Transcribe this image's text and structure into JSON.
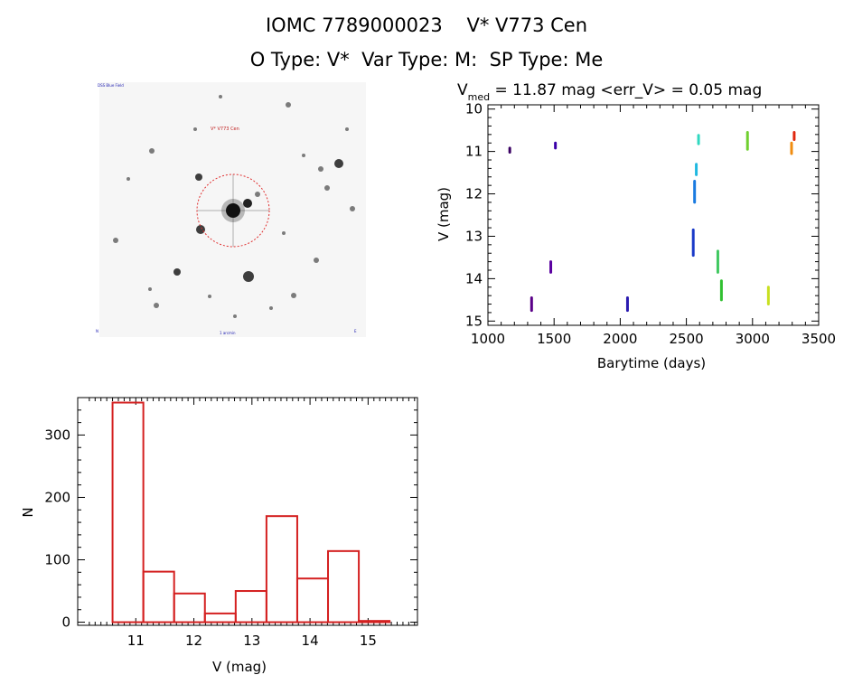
{
  "header": {
    "line1": "IOMC 7789000023    V* V773 Cen",
    "line2": "O Type: V*  Var Type: M:  SP Type: Me"
  },
  "image_labels": {
    "top_left": "DSS Blue Field",
    "target": "V* V773 Cen",
    "bottom": "1 arcmin",
    "corner_left": "N",
    "corner_right": "E"
  },
  "chart_data": [
    {
      "type": "scatter",
      "title_parts": {
        "v": "V",
        "sub": "med",
        "rest": " = 11.87 mag <err_V> = 0.05 mag"
      },
      "xlabel": "Barytime (days)",
      "ylabel": "V (mag)",
      "xlim": [
        1000,
        3500
      ],
      "ylim": [
        15.1,
        9.9
      ],
      "y_inverted": true,
      "xticks": [
        1000,
        1500,
        2000,
        2500,
        3000,
        3500
      ],
      "yticks": [
        10,
        11,
        12,
        13,
        14,
        15
      ],
      "color_by_time": true,
      "segments": [
        {
          "x": 1165,
          "y0": 10.92,
          "y1": 11.02,
          "color": "#3a0063"
        },
        {
          "x": 1330,
          "y0": 14.45,
          "y1": 14.75,
          "color": "#5a0088"
        },
        {
          "x": 1475,
          "y0": 13.6,
          "y1": 13.85,
          "color": "#5a00a0"
        },
        {
          "x": 1510,
          "y0": 10.8,
          "y1": 10.92,
          "color": "#3a00a8"
        },
        {
          "x": 2055,
          "y0": 14.45,
          "y1": 14.75,
          "color": "#2a1ab0"
        },
        {
          "x": 2552,
          "y0": 12.85,
          "y1": 13.45,
          "color": "#1a3ac8"
        },
        {
          "x": 2562,
          "y0": 11.7,
          "y1": 12.2,
          "color": "#1a7ae0"
        },
        {
          "x": 2575,
          "y0": 11.3,
          "y1": 11.55,
          "color": "#20b8e0"
        },
        {
          "x": 2592,
          "y0": 10.62,
          "y1": 10.82,
          "color": "#30d8c0"
        },
        {
          "x": 2738,
          "y0": 13.35,
          "y1": 13.85,
          "color": "#40c860"
        },
        {
          "x": 2765,
          "y0": 14.05,
          "y1": 14.5,
          "color": "#30c030"
        },
        {
          "x": 2962,
          "y0": 10.55,
          "y1": 10.95,
          "color": "#70d030"
        },
        {
          "x": 3120,
          "y0": 14.2,
          "y1": 14.6,
          "color": "#c8e020"
        },
        {
          "x": 3295,
          "y0": 10.8,
          "y1": 11.05,
          "color": "#f08c10"
        },
        {
          "x": 3315,
          "y0": 10.55,
          "y1": 10.72,
          "color": "#e02810"
        }
      ]
    },
    {
      "type": "bar",
      "xlabel": "V (mag)",
      "ylabel": "N",
      "xlim": [
        10.0,
        15.85
      ],
      "ylim": [
        -5,
        360
      ],
      "xticks": [
        11,
        12,
        13,
        14,
        15
      ],
      "yticks": [
        0,
        100,
        200,
        300
      ],
      "bin_edges": [
        10.6,
        11.13,
        11.66,
        12.19,
        12.72,
        13.25,
        13.78,
        14.31,
        14.84,
        15.37
      ],
      "values": [
        352,
        81,
        46,
        14,
        50,
        170,
        70,
        114,
        2
      ],
      "color": "#d42020"
    }
  ]
}
